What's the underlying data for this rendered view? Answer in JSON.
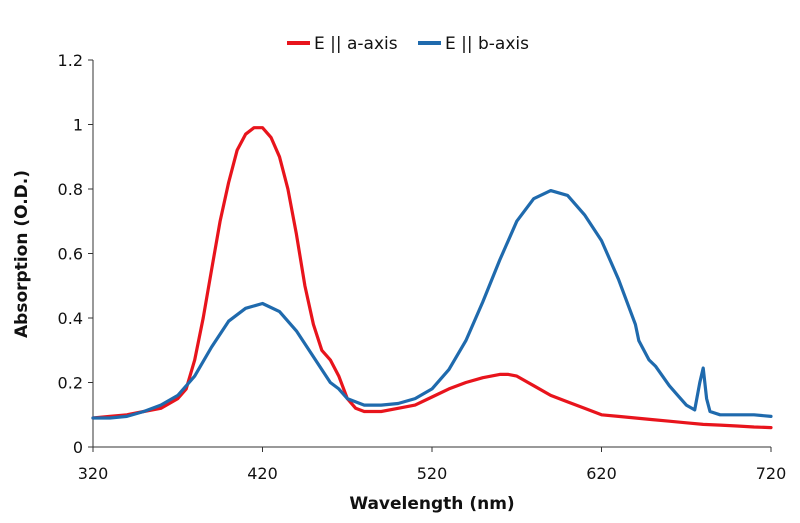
{
  "chart_data": {
    "type": "line",
    "xlabel": "Wavelength (nm)",
    "ylabel": "Absorption (O.D.)",
    "xlim": [
      320,
      720
    ],
    "ylim": [
      0,
      1.2
    ],
    "xticks": [
      "320",
      "420",
      "520",
      "620",
      "720"
    ],
    "yticks": [
      "0",
      "0.2",
      "0.4",
      "0.6",
      "0.8",
      "1",
      "1.2"
    ],
    "xtick_values": [
      320,
      420,
      520,
      620,
      720
    ],
    "ytick_values": [
      0,
      0.2,
      0.4,
      0.6,
      0.8,
      1.0,
      1.2
    ],
    "grid": false,
    "legend_position": "top-center",
    "series": [
      {
        "name": "E || a-axis",
        "color": "#e8141c",
        "x": [
          320,
          330,
          340,
          350,
          360,
          370,
          375,
          380,
          385,
          390,
          395,
          400,
          405,
          410,
          415,
          420,
          425,
          430,
          435,
          440,
          445,
          450,
          455,
          460,
          465,
          470,
          475,
          480,
          490,
          500,
          510,
          520,
          530,
          540,
          550,
          560,
          565,
          570,
          580,
          590,
          600,
          610,
          620,
          630,
          640,
          650,
          660,
          670,
          680,
          690,
          700,
          710,
          720
        ],
        "values": [
          0.09,
          0.095,
          0.1,
          0.11,
          0.12,
          0.15,
          0.18,
          0.27,
          0.4,
          0.55,
          0.7,
          0.82,
          0.92,
          0.97,
          0.99,
          0.99,
          0.96,
          0.9,
          0.8,
          0.66,
          0.5,
          0.38,
          0.3,
          0.27,
          0.22,
          0.15,
          0.12,
          0.11,
          0.11,
          0.12,
          0.13,
          0.155,
          0.18,
          0.2,
          0.215,
          0.225,
          0.225,
          0.22,
          0.19,
          0.16,
          0.14,
          0.12,
          0.1,
          0.095,
          0.09,
          0.085,
          0.08,
          0.075,
          0.07,
          0.068,
          0.065,
          0.062,
          0.06
        ]
      },
      {
        "name": "E || b-axis",
        "color": "#1f6aad",
        "x": [
          320,
          330,
          340,
          350,
          360,
          370,
          380,
          390,
          400,
          410,
          420,
          430,
          440,
          450,
          460,
          465,
          470,
          475,
          480,
          490,
          500,
          510,
          520,
          530,
          540,
          550,
          560,
          570,
          580,
          590,
          600,
          610,
          620,
          630,
          640,
          642,
          645,
          648,
          652,
          656,
          660,
          665,
          670,
          675,
          678,
          680,
          682,
          684,
          690,
          700,
          710,
          720
        ],
        "values": [
          0.09,
          0.09,
          0.095,
          0.11,
          0.13,
          0.16,
          0.22,
          0.31,
          0.39,
          0.43,
          0.445,
          0.42,
          0.36,
          0.28,
          0.2,
          0.18,
          0.15,
          0.14,
          0.13,
          0.13,
          0.135,
          0.15,
          0.18,
          0.24,
          0.33,
          0.45,
          0.58,
          0.7,
          0.77,
          0.795,
          0.78,
          0.72,
          0.64,
          0.52,
          0.38,
          0.33,
          0.3,
          0.27,
          0.25,
          0.22,
          0.19,
          0.16,
          0.13,
          0.115,
          0.2,
          0.245,
          0.15,
          0.11,
          0.1,
          0.1,
          0.1,
          0.095
        ]
      }
    ]
  }
}
